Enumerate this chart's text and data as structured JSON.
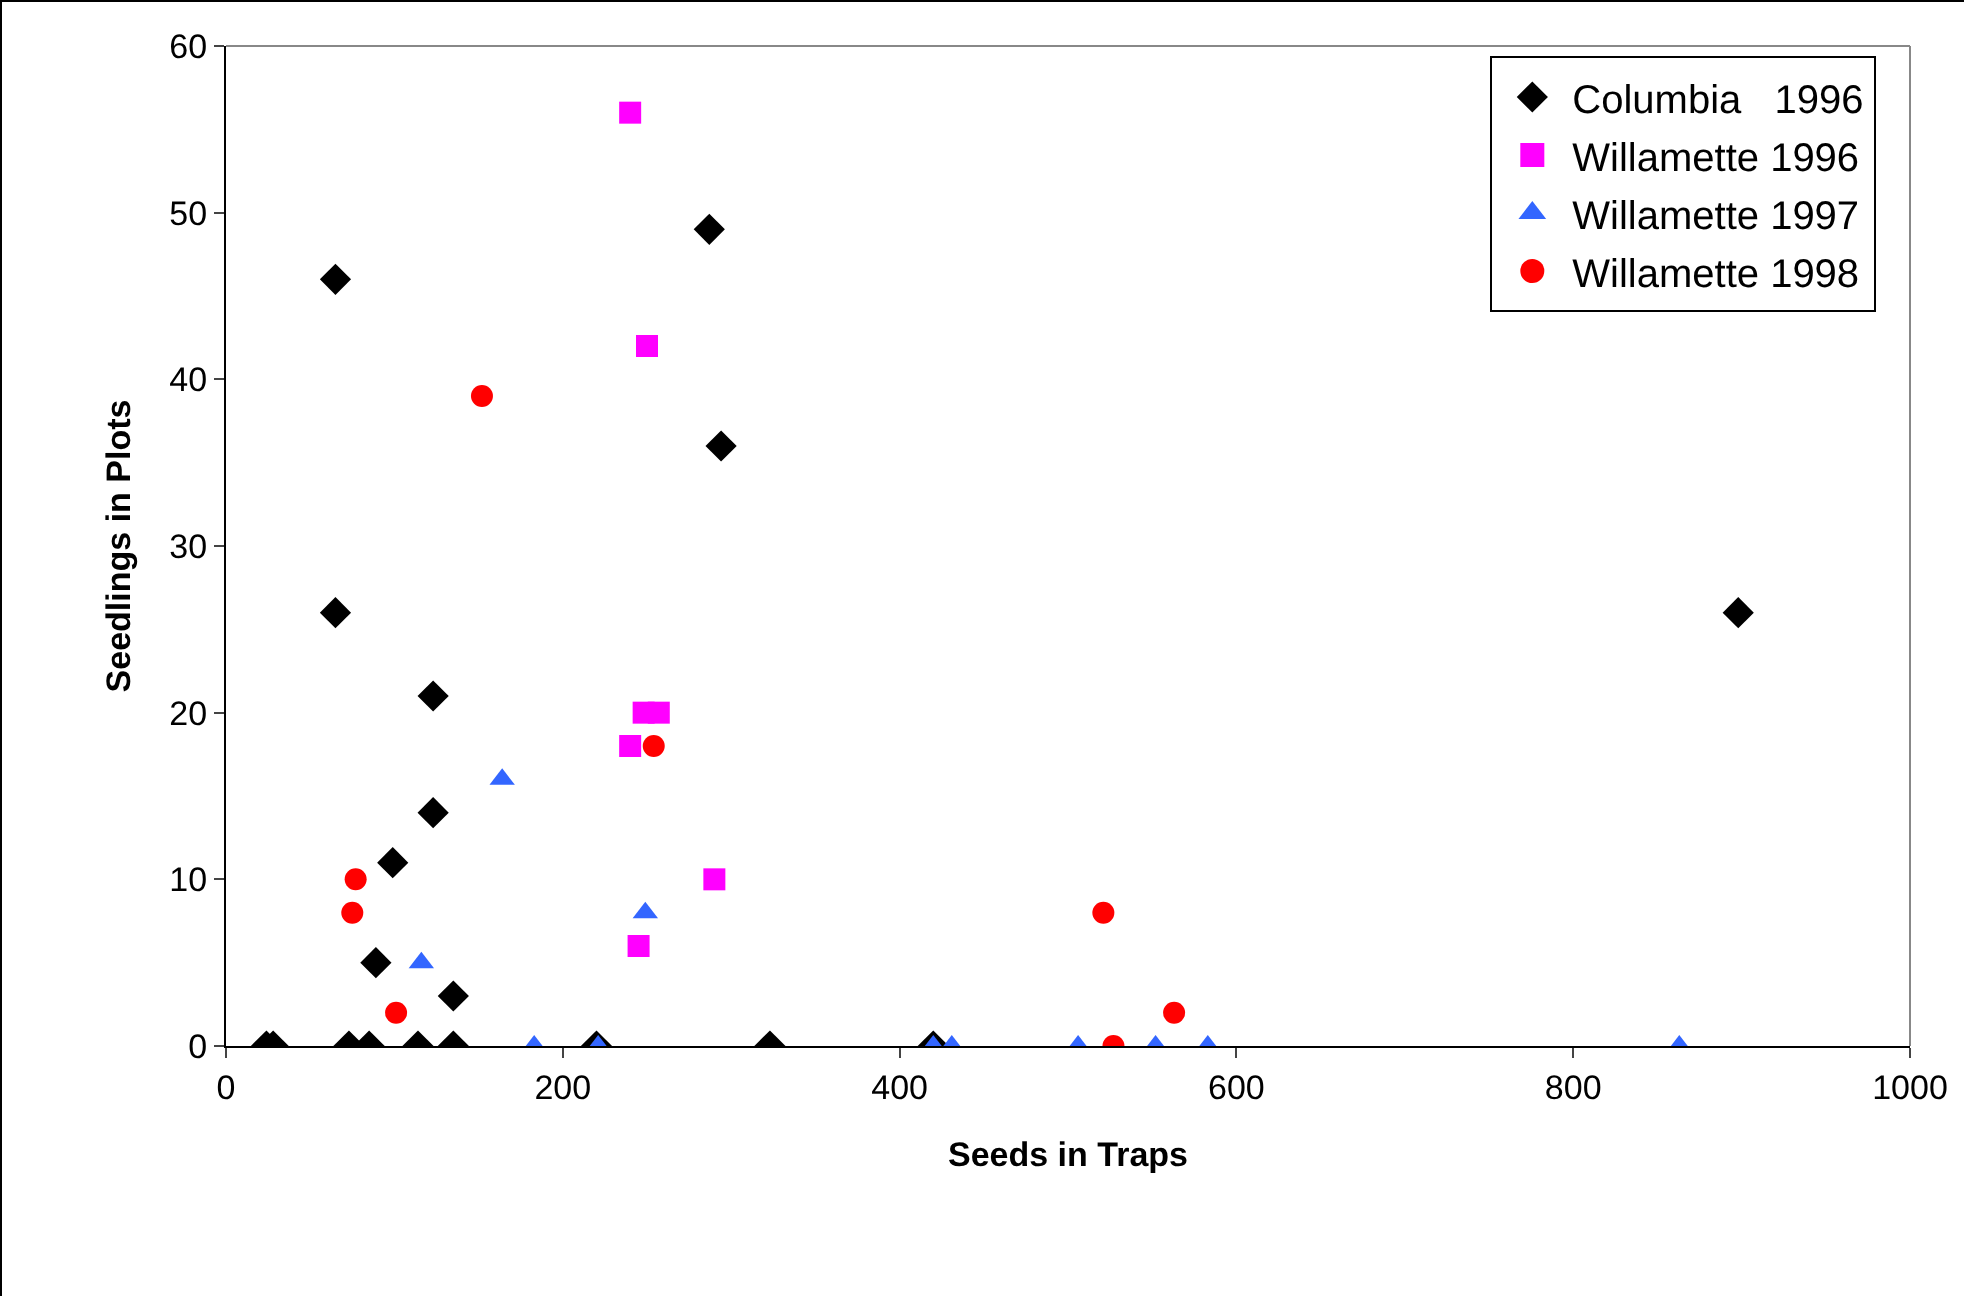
{
  "chart_data": {
    "type": "scatter",
    "xlabel": "Seeds in Traps",
    "ylabel": "Seedlings in Plots",
    "xlim": [
      0,
      1000
    ],
    "xticks": [
      0,
      200,
      400,
      600,
      800,
      1000
    ],
    "ylim": [
      0,
      60
    ],
    "yticks": [
      0,
      10,
      20,
      30,
      40,
      50,
      60
    ],
    "grid": false,
    "legend": "top right",
    "series": [
      {
        "name": "Columbia   1996",
        "color": "#000000",
        "marker": "diamond",
        "x": [
          65,
          65,
          123,
          123,
          99,
          89,
          135,
          24,
          28,
          73,
          85,
          114,
          135,
          287,
          294,
          220,
          323,
          420,
          898
        ],
        "values": [
          46,
          26,
          21,
          14,
          11,
          5,
          3,
          0,
          0,
          0,
          0,
          0,
          0,
          49,
          36,
          0,
          0,
          0,
          26
        ]
      },
      {
        "name": "Willamette 1996",
        "color": "#ff00ff",
        "marker": "square",
        "x": [
          240,
          250,
          248,
          257,
          240,
          290,
          245
        ],
        "values": [
          56,
          42,
          20,
          20,
          18,
          10,
          6
        ]
      },
      {
        "name": "Willamette 1997",
        "color": "#3366ff",
        "marker": "triangle",
        "x": [
          164,
          116,
          249,
          183,
          221,
          420,
          431,
          506,
          552,
          583,
          863
        ],
        "values": [
          16,
          5,
          8,
          0,
          0,
          0,
          0,
          0,
          0,
          0,
          0
        ]
      },
      {
        "name": "Willamette 1998",
        "color": "#ff0000",
        "marker": "circle",
        "x": [
          152,
          77,
          75,
          101,
          254,
          521,
          563,
          527
        ],
        "values": [
          39,
          10,
          8,
          2,
          18,
          8,
          2,
          0
        ]
      }
    ]
  }
}
